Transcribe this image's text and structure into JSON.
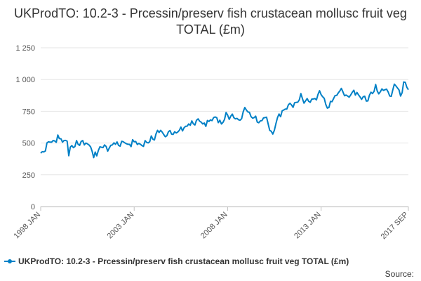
{
  "chart_data": {
    "type": "line",
    "title": "UKProdTO: 10.2-3 - Prcessin/preserv fish crustacean mollusc fruit veg TOTAL (£m)",
    "xlabel": "",
    "ylabel": "",
    "ylim": [
      0,
      1250
    ],
    "yticks": [
      0,
      250,
      500,
      750,
      1000,
      1250
    ],
    "ytick_labels": [
      "0",
      "250",
      "500",
      "750",
      "1 000",
      "1 250"
    ],
    "xticks": [
      "1998 JAN",
      "2003 JAN",
      "2008 JAN",
      "2013 JAN",
      "2017 SEP"
    ],
    "grid": "horizontal",
    "legend_position": "bottom-left",
    "series": [
      {
        "name": "UKProdTO: 10.2-3 - Prcessin/preserv fish crustacean mollusc fruit veg TOTAL (£m)",
        "color": "#0080c6",
        "start": "1998-01",
        "end": "2017-09",
        "anchors": [
          [
            "1998-01",
            420
          ],
          [
            "1998-03",
            430
          ],
          [
            "1998-06",
            510
          ],
          [
            "1998-09",
            520
          ],
          [
            "1999-01",
            535
          ],
          [
            "1999-04",
            520
          ],
          [
            "1999-06",
            515
          ],
          [
            "1999-07",
            400
          ],
          [
            "1999-09",
            480
          ],
          [
            "2000-01",
            490
          ],
          [
            "2000-06",
            500
          ],
          [
            "2000-09",
            470
          ],
          [
            "2000-11",
            385
          ],
          [
            "2001-03",
            470
          ],
          [
            "2001-09",
            460
          ],
          [
            "2002-01",
            490
          ],
          [
            "2002-06",
            510
          ],
          [
            "2002-09",
            490
          ],
          [
            "2003-01",
            510
          ],
          [
            "2003-06",
            480
          ],
          [
            "2003-09",
            505
          ],
          [
            "2004-01",
            530
          ],
          [
            "2004-06",
            600
          ],
          [
            "2004-09",
            550
          ],
          [
            "2005-01",
            570
          ],
          [
            "2005-06",
            600
          ],
          [
            "2005-09",
            620
          ],
          [
            "2006-01",
            640
          ],
          [
            "2006-06",
            690
          ],
          [
            "2006-09",
            650
          ],
          [
            "2007-01",
            670
          ],
          [
            "2007-06",
            700
          ],
          [
            "2007-09",
            650
          ],
          [
            "2008-01",
            720
          ],
          [
            "2008-06",
            690
          ],
          [
            "2008-09",
            680
          ],
          [
            "2009-01",
            760
          ],
          [
            "2009-06",
            700
          ],
          [
            "2009-09",
            660
          ],
          [
            "2010-01",
            700
          ],
          [
            "2010-06",
            570
          ],
          [
            "2010-09",
            700
          ],
          [
            "2011-01",
            760
          ],
          [
            "2011-06",
            800
          ],
          [
            "2011-09",
            820
          ],
          [
            "2012-01",
            850
          ],
          [
            "2012-06",
            820
          ],
          [
            "2012-09",
            850
          ],
          [
            "2013-01",
            880
          ],
          [
            "2013-06",
            780
          ],
          [
            "2013-09",
            850
          ],
          [
            "2014-01",
            910
          ],
          [
            "2014-06",
            870
          ],
          [
            "2014-09",
            900
          ],
          [
            "2015-01",
            880
          ],
          [
            "2015-06",
            830
          ],
          [
            "2015-09",
            900
          ],
          [
            "2016-01",
            910
          ],
          [
            "2016-06",
            920
          ],
          [
            "2016-09",
            870
          ],
          [
            "2017-01",
            950
          ],
          [
            "2017-04",
            870
          ],
          [
            "2017-06",
            980
          ],
          [
            "2017-09",
            920
          ]
        ]
      }
    ]
  },
  "legend": {
    "label": "UKProdTO: 10.2-3 - Prcessin/preserv fish crustacean mollusc fruit veg TOTAL (£m)"
  },
  "source_label": "Source:"
}
